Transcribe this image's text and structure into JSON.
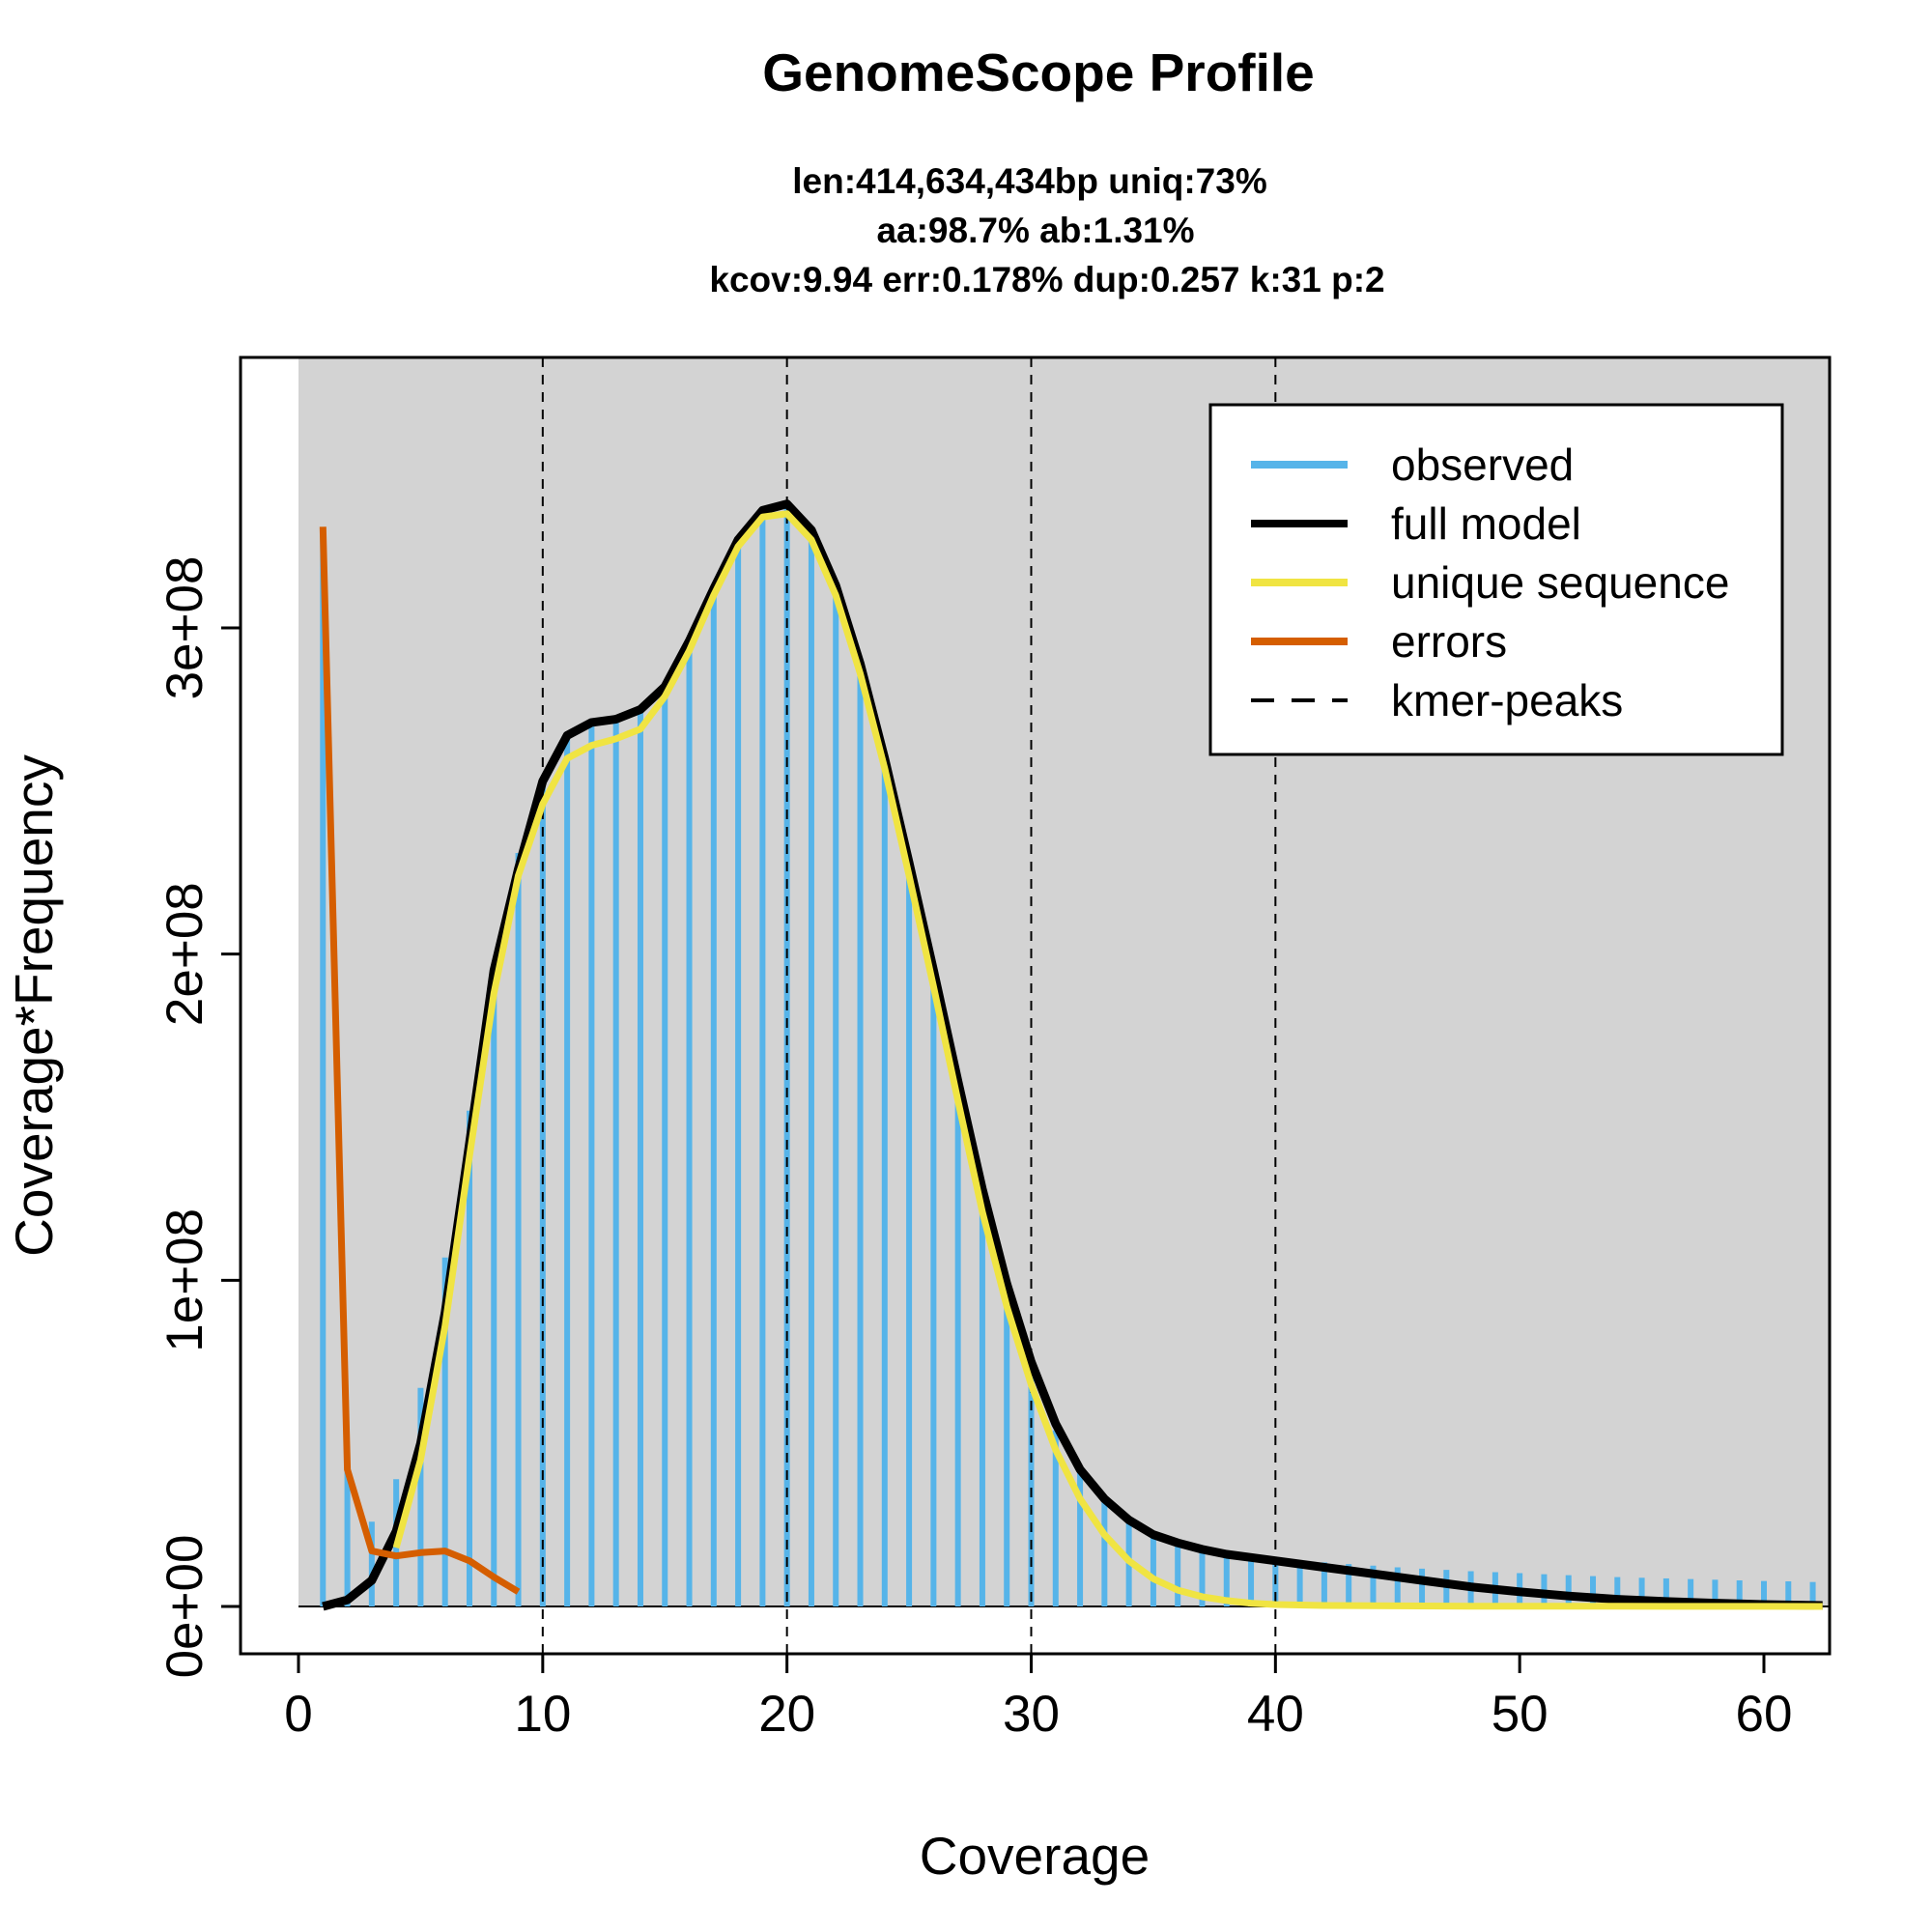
{
  "chart_data": {
    "type": "bar",
    "title": "GenomeScope Profile",
    "subtitle_lines": [
      "len:414,634,434bp uniq:73%",
      "aa:98.7% ab:1.31%",
      "kcov:9.94 err:0.178%  dup:0.257  k:31 p:2"
    ],
    "xlabel": "Coverage",
    "ylabel": "Coverage*Frequency",
    "xlim": [
      0,
      62.4
    ],
    "ylim": [
      0,
      380000000
    ],
    "x_ticks": [
      0,
      10,
      20,
      30,
      40,
      50,
      60
    ],
    "x_tick_labels": [
      "0",
      "10",
      "20",
      "30",
      "40",
      "50",
      "60"
    ],
    "y_ticks": [
      0,
      100000000,
      200000000,
      300000000
    ],
    "y_tick_labels": [
      "0e+00",
      "1e+08",
      "2e+08",
      "3e+08"
    ],
    "grey_region_start": 0,
    "kmer_peaks": [
      10,
      20,
      30,
      40
    ],
    "observed": {
      "x": [
        1,
        2,
        3,
        4,
        5,
        6,
        7,
        8,
        9,
        10,
        11,
        12,
        13,
        14,
        15,
        16,
        17,
        18,
        19,
        20,
        21,
        22,
        23,
        24,
        25,
        26,
        27,
        28,
        29,
        30,
        31,
        32,
        33,
        34,
        35,
        36,
        37,
        38,
        39,
        40,
        41,
        42,
        43,
        44,
        45,
        46,
        47,
        48,
        49,
        50,
        51,
        52,
        53,
        54,
        55,
        56,
        57,
        58,
        59,
        60,
        61,
        62
      ],
      "values": [
        330000000,
        42000000,
        26000000,
        39000000,
        67000000,
        107000000,
        152000000,
        196000000,
        231000000,
        254000000,
        266000000,
        271000000,
        272000000,
        275000000,
        283000000,
        296000000,
        312000000,
        326000000,
        335000000,
        337000000,
        330000000,
        314000000,
        290000000,
        261000000,
        229000000,
        195000000,
        160000000,
        127000000,
        98000000,
        73000000,
        54000000,
        41000000,
        32000000,
        25500000,
        21500000,
        19000000,
        17500000,
        16300000,
        15400000,
        14700000,
        14000000,
        13500000,
        13000000,
        12500000,
        12000000,
        11600000,
        11200000,
        10800000,
        10500000,
        10200000,
        9900000,
        9600000,
        9300000,
        9000000,
        8800000,
        8600000,
        8400000,
        8200000,
        8000000,
        7800000,
        7700000,
        7500000
      ]
    },
    "series": [
      {
        "name": "full model",
        "color": "#000000",
        "x": [
          1,
          2,
          3,
          4,
          5,
          6,
          7,
          8,
          9,
          10,
          11,
          12,
          13,
          14,
          15,
          16,
          17,
          18,
          19,
          20,
          21,
          22,
          23,
          24,
          25,
          26,
          27,
          28,
          29,
          30,
          31,
          32,
          33,
          34,
          35,
          36,
          37,
          38,
          39,
          40,
          42,
          44,
          46,
          48,
          50,
          52,
          54,
          56,
          58,
          60,
          62.4
        ],
        "y": [
          0,
          2000000,
          8000000,
          23000000,
          50000000,
          90000000,
          142000000,
          195000000,
          226000000,
          253000000,
          267000000,
          271000000,
          272000000,
          275000000,
          282000000,
          296000000,
          312000000,
          327000000,
          336000000,
          338000000,
          330000000,
          313000000,
          289000000,
          260000000,
          228000000,
          195000000,
          161000000,
          128000000,
          99000000,
          75000000,
          56000000,
          42000000,
          33000000,
          26500000,
          22000000,
          19500000,
          17500000,
          16000000,
          15000000,
          14000000,
          12000000,
          10000000,
          8000000,
          6000000,
          4500000,
          3200000,
          2200000,
          1500000,
          1000000,
          600000,
          300000
        ]
      },
      {
        "name": "unique sequence",
        "color": "#f0e442",
        "x": [
          4,
          5,
          6,
          7,
          8,
          9,
          10,
          11,
          12,
          13,
          14,
          15,
          16,
          17,
          18,
          19,
          20,
          21,
          22,
          23,
          24,
          25,
          26,
          27,
          28,
          29,
          30,
          31,
          32,
          33,
          34,
          35,
          36,
          37,
          38,
          39,
          40,
          42,
          44,
          46,
          48,
          50,
          52,
          54,
          56,
          58,
          60,
          62.4
        ],
        "y": [
          18000000,
          45000000,
          86000000,
          138000000,
          188000000,
          224000000,
          246000000,
          260000000,
          264000000,
          266000000,
          269000000,
          279000000,
          293000000,
          310000000,
          325000000,
          334000000,
          335000000,
          327000000,
          310000000,
          286000000,
          257000000,
          224000000,
          190000000,
          155000000,
          121000000,
          92000000,
          68000000,
          48000000,
          33000000,
          22000000,
          14000000,
          8500000,
          5000000,
          3000000,
          1800000,
          1000000,
          600000,
          300000,
          200000,
          150000,
          100000,
          80000,
          60000,
          50000,
          40000,
          30000,
          20000,
          10000
        ]
      },
      {
        "name": "errors",
        "color": "#d55e00",
        "x": [
          1,
          2,
          3,
          4,
          5,
          6,
          7,
          8,
          9
        ],
        "y": [
          331000000,
          42000000,
          17000000,
          15500000,
          16500000,
          17000000,
          14000000,
          9000000,
          4500000
        ]
      }
    ],
    "observed_color": "#56b4e9",
    "legend": {
      "position": "top-right",
      "entries": [
        {
          "label": "observed",
          "color": "#56b4e9",
          "style": "solid"
        },
        {
          "label": "full model",
          "color": "#000000",
          "style": "solid"
        },
        {
          "label": "unique sequence",
          "color": "#f0e442",
          "style": "solid"
        },
        {
          "label": "errors",
          "color": "#d55e00",
          "style": "solid"
        },
        {
          "label": "kmer-peaks",
          "color": "#000000",
          "style": "dashed"
        }
      ]
    }
  }
}
